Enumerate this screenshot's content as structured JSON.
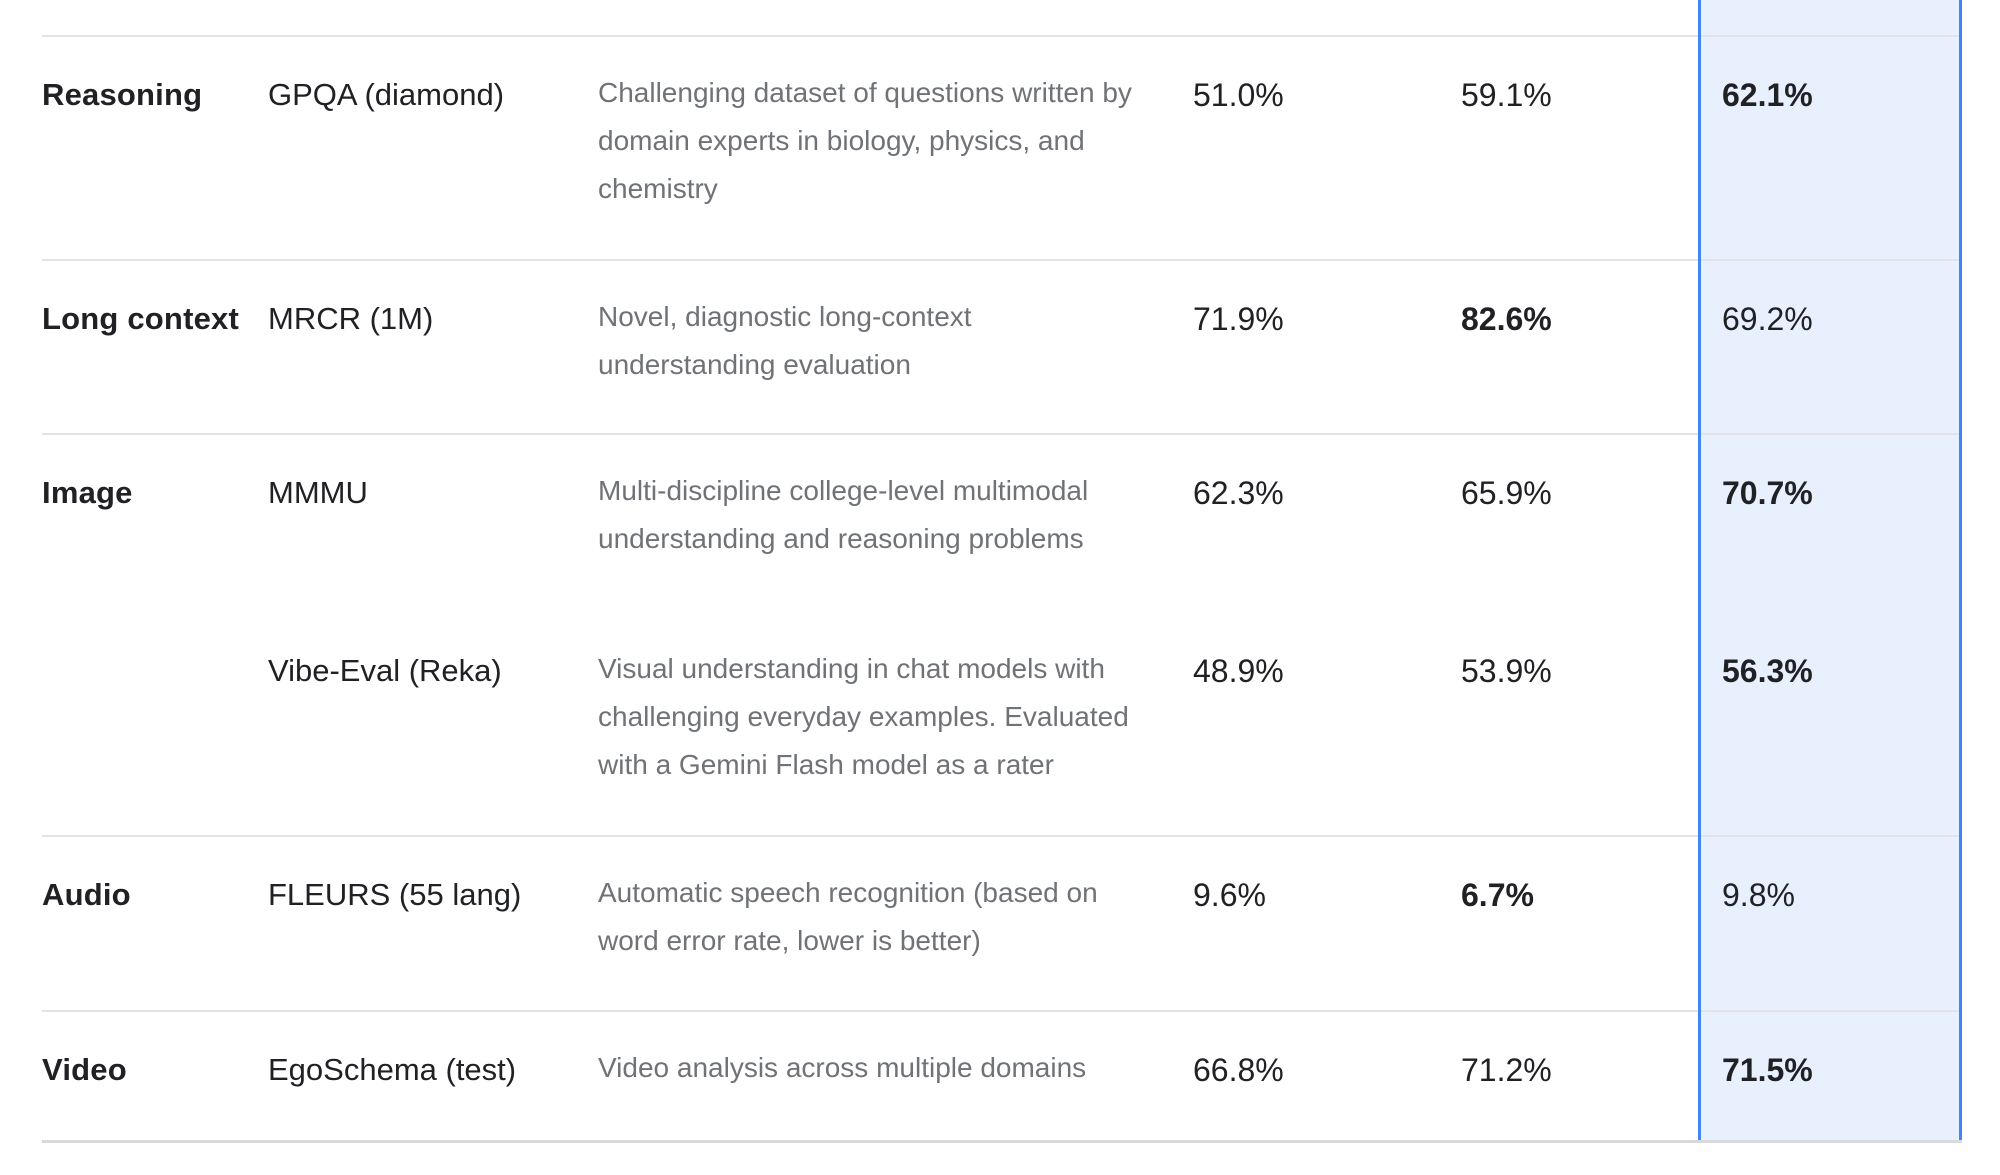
{
  "colors": {
    "highlight_fill": "#e8f0fe",
    "highlight_border": "#4285f4",
    "divider": "#e1e3e6",
    "text_primary": "#202124",
    "text_secondary": "#6f7276"
  },
  "table": {
    "highlighted_column_index": 2,
    "rows": [
      {
        "category": "Reasoning",
        "benchmark": "GPQA (diamond)",
        "description": "Challenging dataset of questions written by\ndomain experts in biology, physics, and\nchemistry",
        "scores": [
          {
            "value": "51.0%",
            "bold": false
          },
          {
            "value": "59.1%",
            "bold": false
          },
          {
            "value": "62.1%",
            "bold": true
          }
        ]
      },
      {
        "category": "Long context",
        "benchmark": "MRCR (1M)",
        "description": "Novel, diagnostic long-context\nunderstanding evaluation",
        "scores": [
          {
            "value": "71.9%",
            "bold": false
          },
          {
            "value": "82.6%",
            "bold": true
          },
          {
            "value": "69.2%",
            "bold": false
          }
        ]
      },
      {
        "category": "Image",
        "benchmark": "MMMU",
        "description": "Multi-discipline college-level multimodal\nunderstanding and reasoning problems",
        "scores": [
          {
            "value": "62.3%",
            "bold": false
          },
          {
            "value": "65.9%",
            "bold": false
          },
          {
            "value": "70.7%",
            "bold": true
          }
        ]
      },
      {
        "category": "",
        "benchmark": "Vibe-Eval (Reka)",
        "description": "Visual understanding in chat models with\nchallenging everyday examples. Evaluated\nwith a Gemini Flash model as a rater",
        "scores": [
          {
            "value": "48.9%",
            "bold": false
          },
          {
            "value": "53.9%",
            "bold": false
          },
          {
            "value": "56.3%",
            "bold": true
          }
        ]
      },
      {
        "category": "Audio",
        "benchmark": "FLEURS (55 lang)",
        "description": "Automatic speech recognition (based on\nword error rate, lower is better)",
        "scores": [
          {
            "value": "9.6%",
            "bold": false
          },
          {
            "value": "6.7%",
            "bold": true
          },
          {
            "value": "9.8%",
            "bold": false
          }
        ]
      },
      {
        "category": "Video",
        "benchmark": "EgoSchema (test)",
        "description": "Video analysis across multiple domains",
        "scores": [
          {
            "value": "66.8%",
            "bold": false
          },
          {
            "value": "71.2%",
            "bold": false
          },
          {
            "value": "71.5%",
            "bold": true
          }
        ]
      }
    ]
  }
}
